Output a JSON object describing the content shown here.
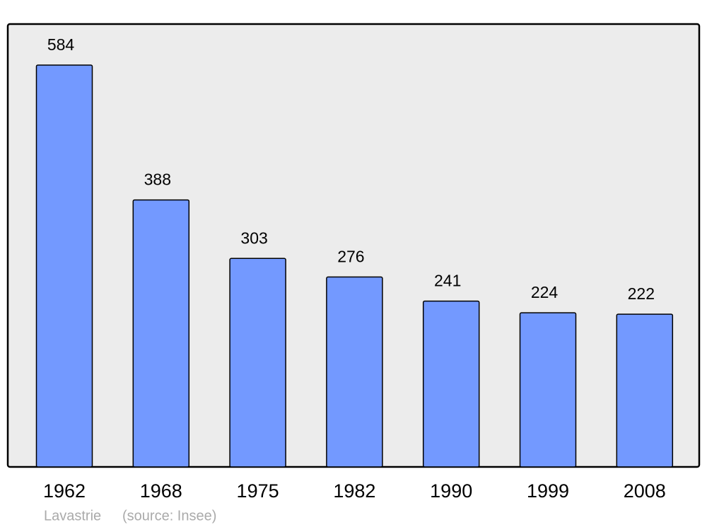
{
  "chart_data": {
    "type": "bar",
    "categories": [
      "1962",
      "1968",
      "1975",
      "1982",
      "1990",
      "1999",
      "2008"
    ],
    "values": [
      584,
      388,
      303,
      276,
      241,
      224,
      222
    ],
    "color": "#7399ff",
    "caption": "Lavastrie",
    "source": "(source: Insee)"
  }
}
